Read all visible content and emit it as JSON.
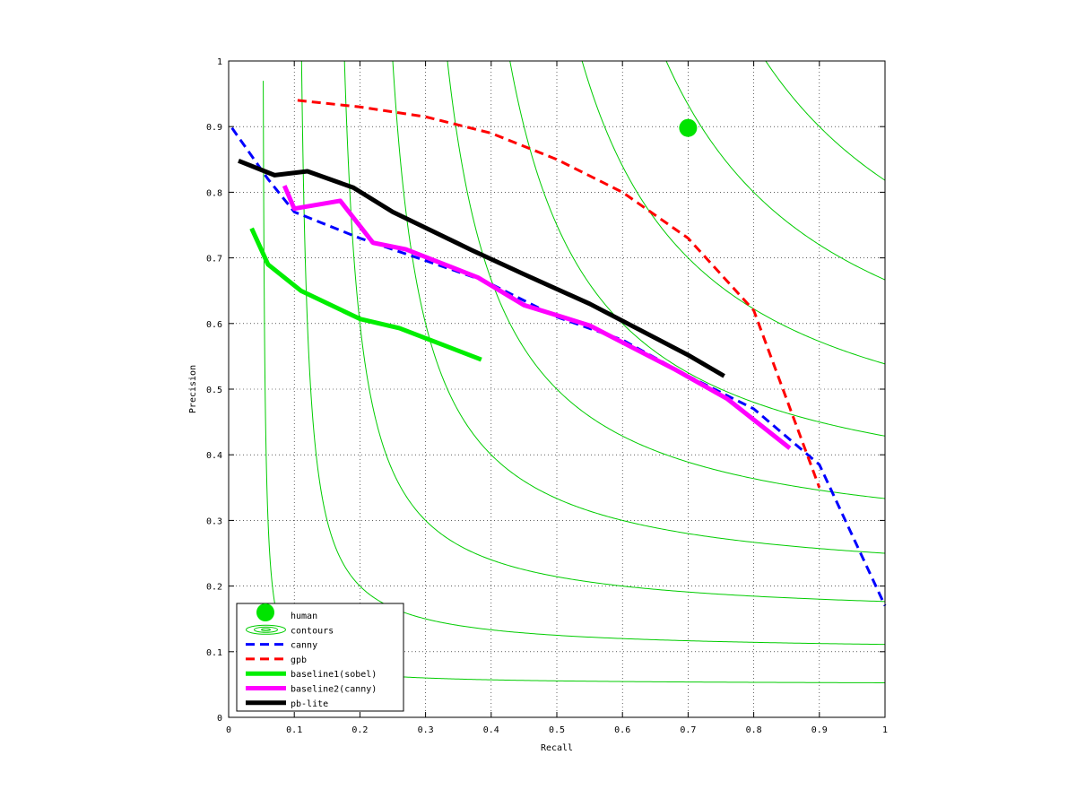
{
  "chart_data": {
    "type": "line",
    "xlabel": "Recall",
    "ylabel": "Precision",
    "xlim": [
      0,
      1
    ],
    "ylim": [
      0,
      1
    ],
    "grid": true,
    "legend_position": "bottom-left",
    "x_ticks": [
      "0",
      "0.1",
      "0.2",
      "0.3",
      "0.4",
      "0.5",
      "0.6",
      "0.7",
      "0.8",
      "0.9",
      "1"
    ],
    "y_ticks": [
      "0",
      "0.1",
      "0.2",
      "0.3",
      "0.4",
      "0.5",
      "0.6",
      "0.7",
      "0.8",
      "0.9",
      "1"
    ],
    "contours": {
      "name": "contours",
      "color": "#00cc00",
      "f_levels": [
        0.1,
        0.2,
        0.3,
        0.4,
        0.5,
        0.6,
        0.7,
        0.8,
        0.9
      ]
    },
    "series": [
      {
        "name": "human",
        "kind": "marker",
        "color": "#00e400",
        "points": [
          [
            0.7,
            0.898
          ]
        ]
      },
      {
        "name": "canny",
        "kind": "line",
        "color": "#0000ff",
        "dash": "10,6",
        "width": 3,
        "points": [
          [
            0.005,
            0.898
          ],
          [
            0.06,
            0.82
          ],
          [
            0.1,
            0.77
          ],
          [
            0.2,
            0.73
          ],
          [
            0.39,
            0.665
          ],
          [
            0.5,
            0.61
          ],
          [
            0.6,
            0.575
          ],
          [
            0.7,
            0.52
          ],
          [
            0.8,
            0.47
          ],
          [
            0.9,
            0.385
          ],
          [
            1.0,
            0.17
          ]
        ]
      },
      {
        "name": "gpb",
        "kind": "line",
        "color": "#ff0000",
        "dash": "10,6",
        "width": 3,
        "points": [
          [
            0.105,
            0.94
          ],
          [
            0.2,
            0.93
          ],
          [
            0.3,
            0.915
          ],
          [
            0.4,
            0.89
          ],
          [
            0.5,
            0.85
          ],
          [
            0.6,
            0.8
          ],
          [
            0.7,
            0.73
          ],
          [
            0.8,
            0.62
          ],
          [
            0.9,
            0.35
          ]
        ]
      },
      {
        "name": "baseline1(sobel)",
        "kind": "line",
        "color": "#00ee00",
        "width": 5,
        "points": [
          [
            0.035,
            0.745
          ],
          [
            0.06,
            0.69
          ],
          [
            0.11,
            0.65
          ],
          [
            0.2,
            0.607
          ],
          [
            0.26,
            0.593
          ],
          [
            0.385,
            0.545
          ]
        ]
      },
      {
        "name": "baseline2(canny)",
        "kind": "line",
        "color": "#ff00ff",
        "width": 5,
        "points": [
          [
            0.085,
            0.81
          ],
          [
            0.1,
            0.775
          ],
          [
            0.17,
            0.787
          ],
          [
            0.22,
            0.723
          ],
          [
            0.27,
            0.713
          ],
          [
            0.38,
            0.67
          ],
          [
            0.45,
            0.628
          ],
          [
            0.55,
            0.597
          ],
          [
            0.68,
            0.53
          ],
          [
            0.76,
            0.485
          ],
          [
            0.855,
            0.41
          ]
        ]
      },
      {
        "name": "pb-lite",
        "kind": "line",
        "color": "#000000",
        "width": 5,
        "points": [
          [
            0.015,
            0.848
          ],
          [
            0.07,
            0.826
          ],
          [
            0.12,
            0.832
          ],
          [
            0.19,
            0.807
          ],
          [
            0.25,
            0.77
          ],
          [
            0.37,
            0.712
          ],
          [
            0.45,
            0.675
          ],
          [
            0.55,
            0.63
          ],
          [
            0.7,
            0.552
          ],
          [
            0.755,
            0.52
          ]
        ]
      }
    ]
  }
}
